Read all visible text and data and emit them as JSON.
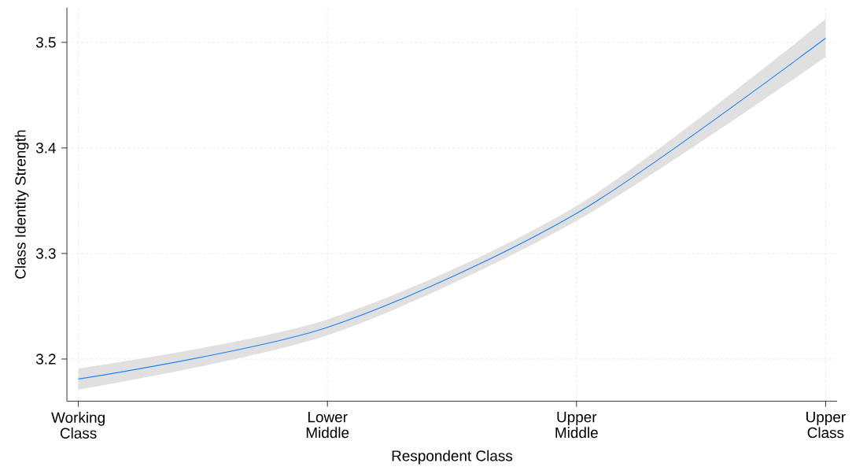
{
  "chart_data": {
    "type": "line",
    "xlabel": "Respondent Class",
    "ylabel": "Class Identity Strength",
    "categories": [
      "Working Class",
      "Lower Middle",
      "Upper Middle",
      "Upper Class"
    ],
    "series": [
      {
        "color": "#1a85ff",
        "values": [
          3.181,
          3.23,
          3.338,
          3.504
        ],
        "lower": [
          3.171,
          3.2225,
          3.331,
          3.486
        ],
        "upper": [
          3.191,
          3.2375,
          3.345,
          3.522
        ]
      }
    ],
    "ylim": [
      3.16,
      3.533
    ],
    "yticks": [
      3.2,
      3.3,
      3.4,
      3.5
    ],
    "grid": true,
    "marker": "none",
    "line_style": "solid"
  }
}
